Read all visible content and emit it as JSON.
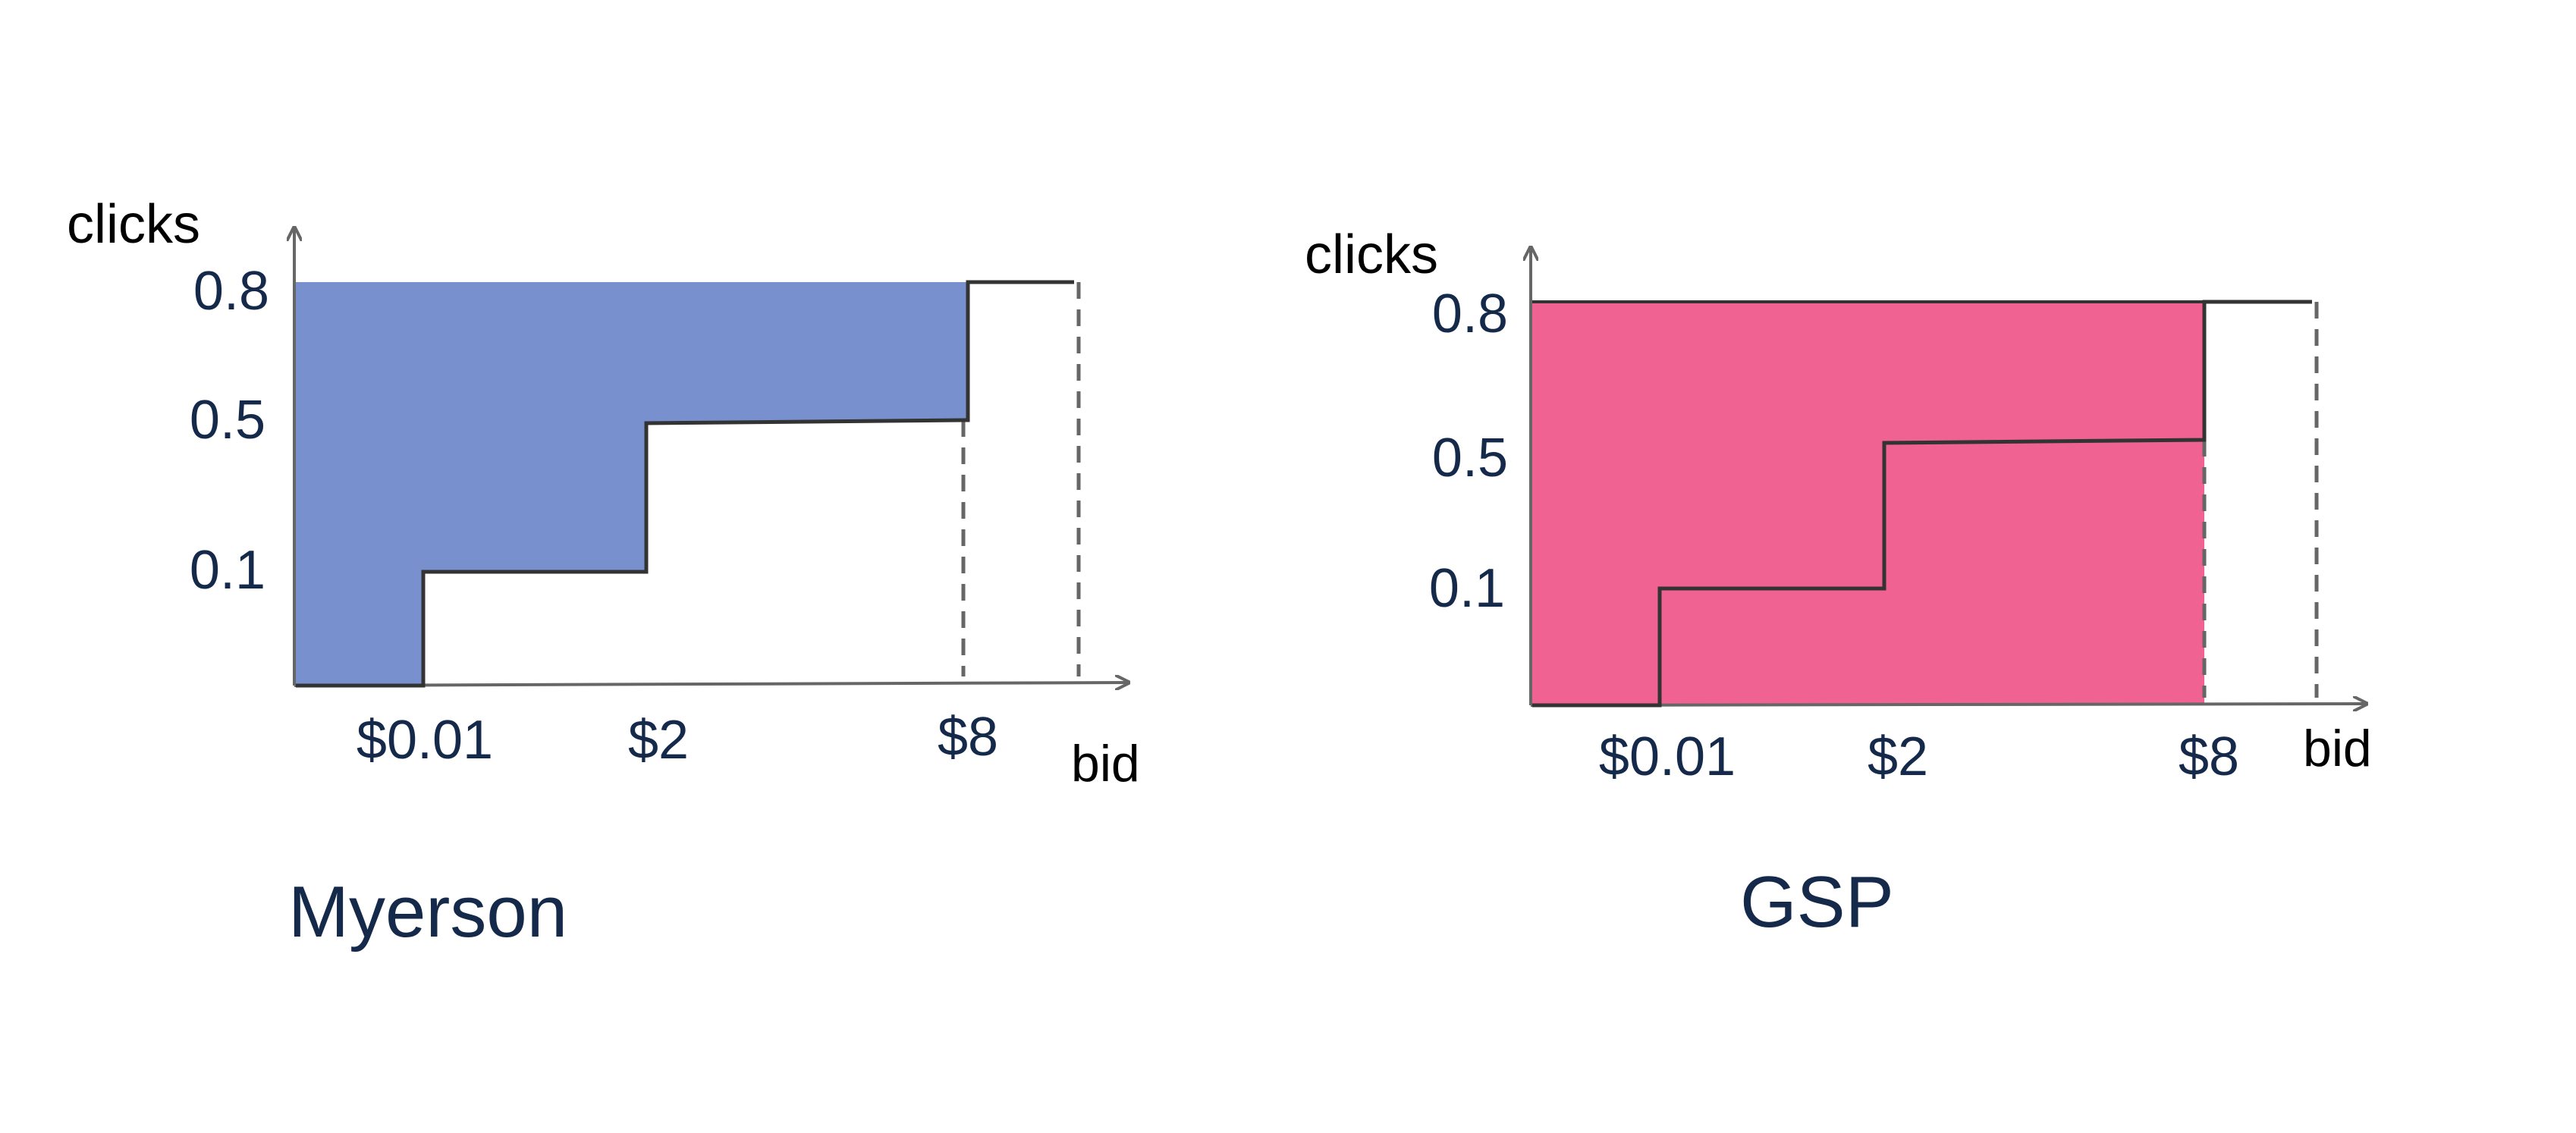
{
  "colors": {
    "myerson_fill": "#7890cd",
    "gsp_fill": "#ef6291",
    "curve": "#333333",
    "axis": "#666666",
    "dashed": "#666666",
    "navy_text": "#15294a"
  },
  "chart_data": [
    {
      "type": "area",
      "title": "Myerson",
      "xlabel": "bid",
      "ylabel": "clicks",
      "x_ticks": [
        "$0.01",
        "$2",
        "$8"
      ],
      "y_ticks": [
        "0.1",
        "0.5",
        "0.8"
      ],
      "allocation_steps": [
        {
          "bid": "$0.01",
          "clicks": 0.1
        },
        {
          "bid": "$2",
          "clicks": 0.5
        },
        {
          "bid": "$8",
          "clicks": 0.8
        }
      ],
      "shaded_region": "area above the allocation curve, bids 0 to $8",
      "dashed_lines_at": [
        "$8",
        "beyond $8"
      ]
    },
    {
      "type": "area",
      "title": "GSP",
      "xlabel": "bid",
      "ylabel": "clicks",
      "x_ticks": [
        "$0.01",
        "$2",
        "$8"
      ],
      "y_ticks": [
        "0.1",
        "0.5",
        "0.8"
      ],
      "allocation_steps": [
        {
          "bid": "$0.01",
          "clicks": 0.1
        },
        {
          "bid": "$2",
          "clicks": 0.5
        },
        {
          "bid": "$8",
          "clicks": 0.8
        }
      ],
      "shaded_region": "full rectangle up to clicks 0.8, bids 0 to $8",
      "dashed_lines_at": [
        "beyond $8"
      ]
    }
  ]
}
